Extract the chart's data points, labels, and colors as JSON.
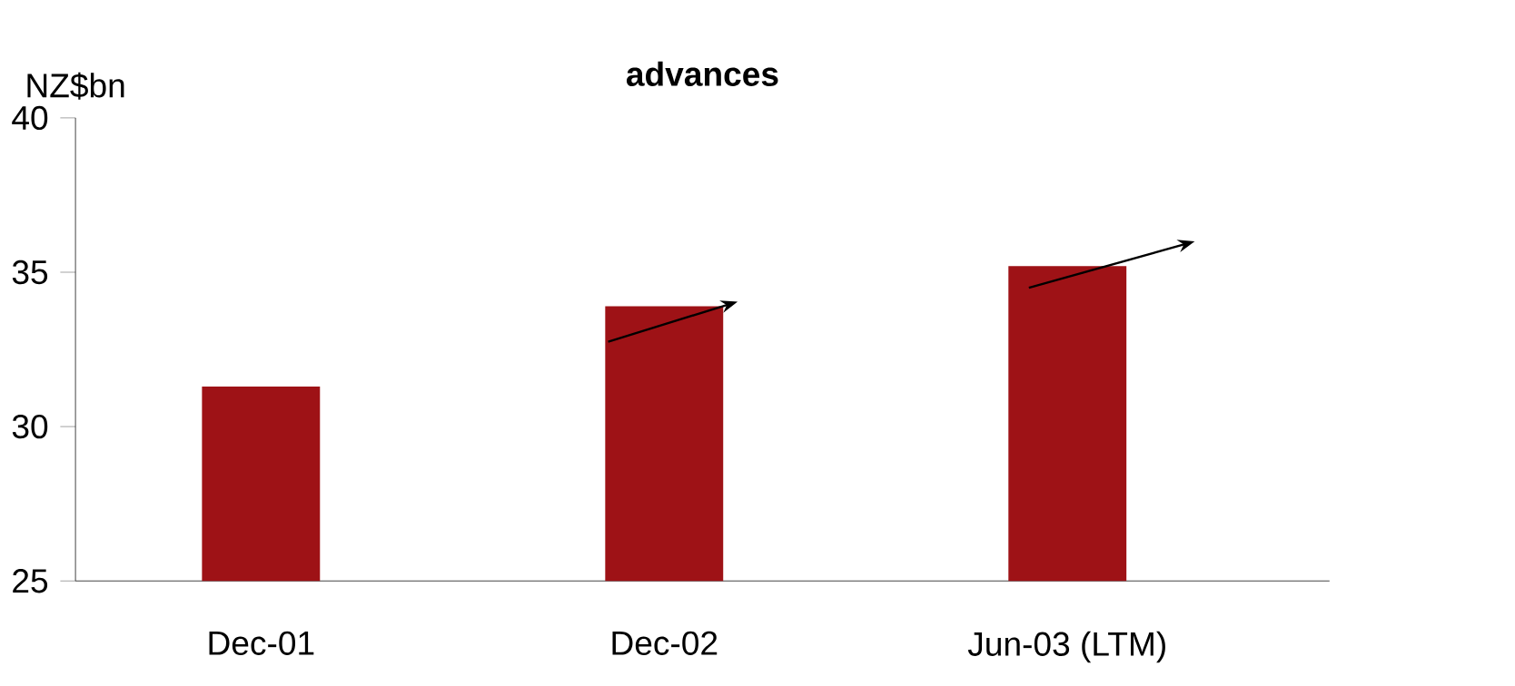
{
  "chart_data": {
    "type": "bar",
    "title": "advances",
    "ylabel": "NZ$bn",
    "categories": [
      "Dec-01",
      "Dec-02",
      "Jun-03 (LTM)"
    ],
    "values": [
      31.3,
      33.9,
      35.2
    ],
    "color": "#9e1216",
    "ylim": [
      25,
      40
    ],
    "yticks": [
      25,
      30,
      35,
      40
    ]
  }
}
